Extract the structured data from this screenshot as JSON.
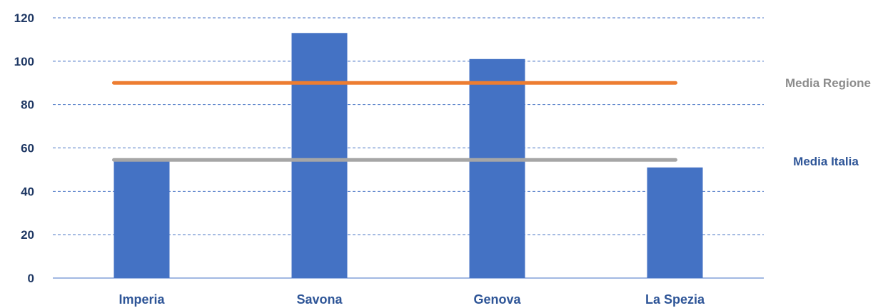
{
  "chart_data": {
    "type": "bar",
    "categories": [
      "Imperia",
      "Savona",
      "Genova",
      "La Spezia"
    ],
    "values": [
      54,
      113,
      101,
      51
    ],
    "ylim": [
      0,
      120
    ],
    "yticks": [
      "0",
      "20",
      "40",
      "60",
      "80",
      "100",
      "120"
    ],
    "grid": true,
    "bar_color": "#4472c4",
    "reference_lines": [
      {
        "name": "Media Regione",
        "value": 90,
        "color": "#ed7d31",
        "label_color": "#8c8c8c"
      },
      {
        "name": "Media Italia",
        "value": 54.5,
        "color": "#a6a6a6",
        "label_color": "#2e5597"
      }
    ],
    "category_label_color": "#2e5597",
    "tick_label_color": "#1f3864"
  }
}
